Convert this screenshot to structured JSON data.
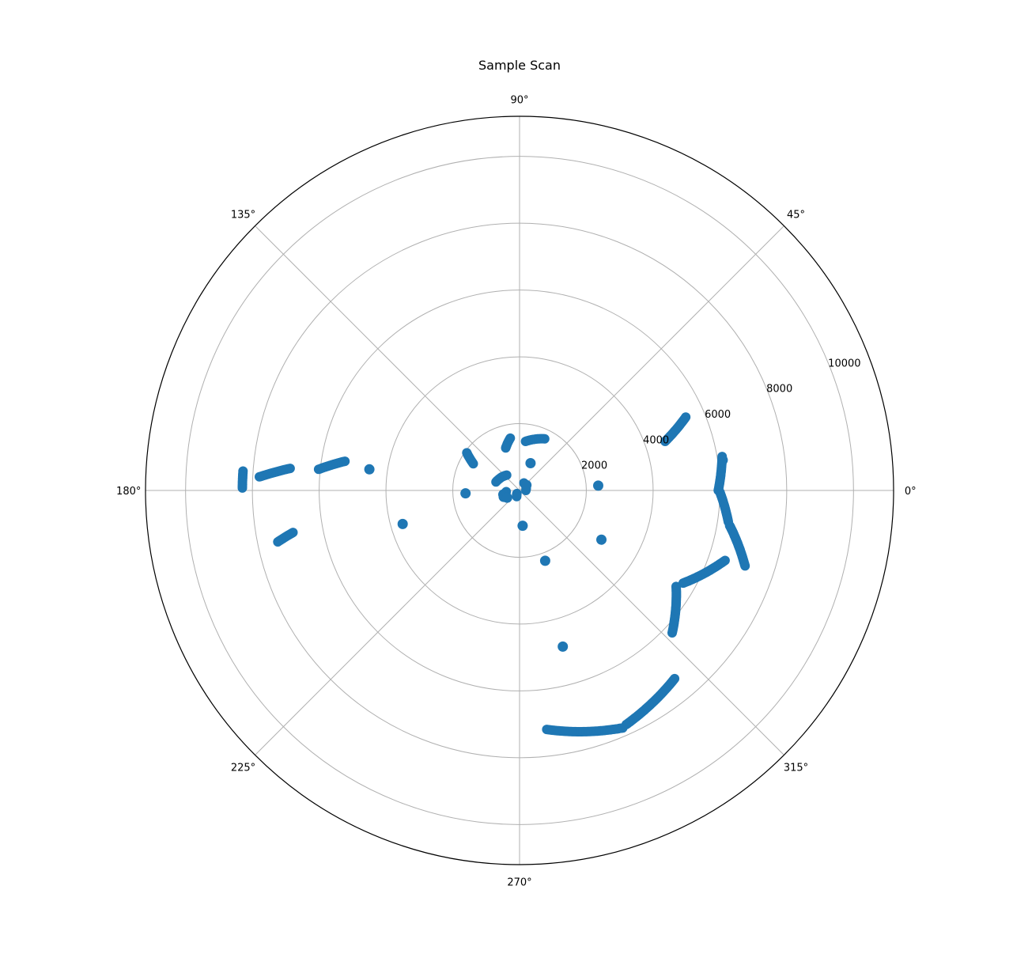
{
  "chart_data": {
    "type": "scatter",
    "projection": "polar",
    "title": "Sample Scan",
    "theta_unit": "degrees",
    "r_unit": "distance",
    "rlim": [
      0,
      11200
    ],
    "r_ticks": [
      2000,
      4000,
      6000,
      8000,
      10000
    ],
    "r_tick_labels": [
      "2000",
      "4000",
      "6000",
      "8000",
      "10000"
    ],
    "theta_ticks": [
      0,
      45,
      90,
      135,
      180,
      225,
      270,
      315
    ],
    "theta_tick_labels": [
      "0°",
      "45°",
      "90°",
      "135°",
      "180°",
      "225°",
      "270°",
      "315°"
    ],
    "grid": true,
    "marker_color": "#1f77b4",
    "series": [
      {
        "segments": [
          {
            "theta": [
              18.6,
              23.8
            ],
            "r": [
              4600,
              5440
            ]
          },
          {
            "theta": [
              0.0,
              9.5
            ],
            "r": [
              5950,
              6150
            ]
          },
          {
            "theta": [
              -0.5,
              -8.5
            ],
            "r": [
              6000,
              6320
            ]
          },
          {
            "theta": [
              -9.5,
              -18.5
            ],
            "r": [
              6380,
              7120
            ]
          },
          {
            "theta": [
              -18.8,
              -29.5
            ],
            "r": [
              6500,
              5630
            ]
          },
          {
            "theta": [
              -31.5,
              -43.0
            ],
            "r": [
              5500,
              6250
            ]
          },
          {
            "theta": [
              -50.5,
              -65.5
            ],
            "r": [
              7300,
              7700
            ]
          },
          {
            "theta": [
              -66.5,
              -83.5
            ],
            "r": [
              7750,
              7200
            ]
          },
          {
            "theta": [
              176.0,
              179.5
            ],
            "r": [
              8300,
              8300
            ]
          },
          {
            "theta": [
              174.5,
              177.0
            ],
            "r": [
              6900,
              7800
            ]
          },
          {
            "theta": [
              170.5,
              174.0
            ],
            "r": [
              5300,
              6050
            ]
          },
          {
            "theta": [
              190.5,
              192.0
            ],
            "r": [
              6900,
              7400
            ]
          },
          {
            "theta": [
              64.0,
              83.0
            ],
            "r": [
              1720,
              1480
            ]
          },
          {
            "theta": [
              144.5,
              150.0
            ],
            "r": [
              1940,
              1600
            ]
          },
          {
            "theta": [
              100.0,
              108.0
            ],
            "r": [
              1590,
              1340
            ]
          },
          {
            "theta": [
              0.0,
              60.0
            ],
            "r": [
              190,
              260
            ]
          },
          {
            "theta": [
              130.0,
              160.0
            ],
            "r": [
              600,
              750
            ]
          },
          {
            "theta": [
              185.0,
              200.0
            ],
            "r": [
              400,
              500
            ]
          },
          {
            "theta": [
              230.0,
              245.0
            ],
            "r": [
              120,
              200
            ]
          }
        ],
        "points": [
          {
            "theta": 8.5,
            "r": 6150
          },
          {
            "theta": 38.0,
            "r": 260
          },
          {
            "theta": 3.5,
            "r": 2360
          },
          {
            "theta": 68.0,
            "r": 880
          },
          {
            "theta": -31.0,
            "r": 2860
          },
          {
            "theta": -70.0,
            "r": 2240
          },
          {
            "theta": -85.0,
            "r": 1060
          },
          {
            "theta": -74.5,
            "r": 4850
          },
          {
            "theta": 172.0,
            "r": 4540
          },
          {
            "theta": 196.0,
            "r": 3640
          },
          {
            "theta": 183.0,
            "r": 1620
          },
          {
            "theta": 194.0,
            "r": 500
          },
          {
            "theta": 202.0,
            "r": 510
          },
          {
            "theta": 210.0,
            "r": 430
          }
        ]
      }
    ]
  }
}
